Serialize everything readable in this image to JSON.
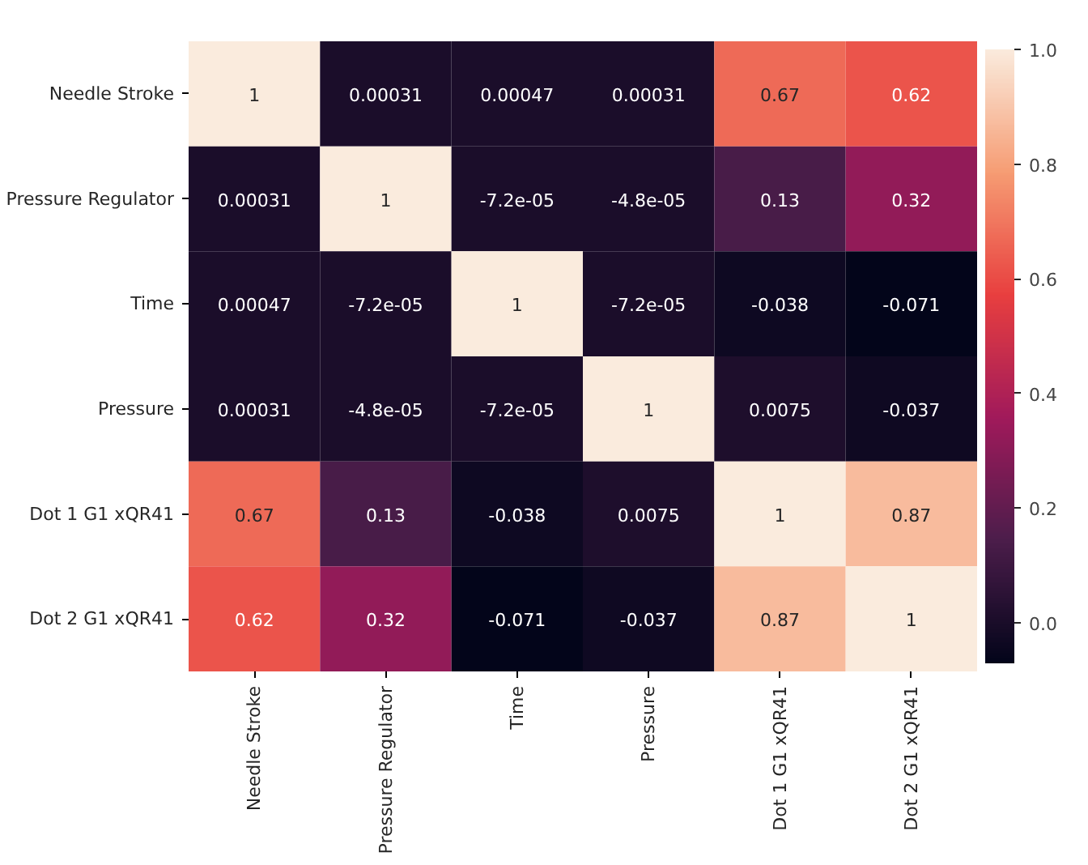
{
  "chart_data": {
    "type": "heatmap",
    "categories": [
      "Needle Stroke",
      "Pressure Regulator",
      "Time",
      "Pressure",
      "Dot 1 G1 xQR41",
      "Dot 2 G1 xQR41"
    ],
    "y_categories": [
      "Needle Stroke",
      "Pressure Regulator",
      "Time",
      "Pressure",
      "Dot 1 G1 xQR41",
      "Dot 2 G1 xQR41"
    ],
    "cells": [
      [
        1,
        0.00031,
        0.00047,
        0.00031,
        0.67,
        0.62
      ],
      [
        0.00031,
        1,
        -7.2e-05,
        -4.8e-05,
        0.13,
        0.32
      ],
      [
        0.00047,
        -7.2e-05,
        1,
        -7.2e-05,
        -0.038,
        -0.071
      ],
      [
        0.00031,
        -4.8e-05,
        -7.2e-05,
        1,
        0.0075,
        -0.037
      ],
      [
        0.67,
        0.13,
        -0.038,
        0.0075,
        1,
        0.87
      ],
      [
        0.62,
        0.32,
        -0.071,
        -0.037,
        0.87,
        1
      ]
    ],
    "cell_labels": [
      [
        "1",
        "0.00031",
        "0.00047",
        "0.00031",
        "0.67",
        "0.62"
      ],
      [
        "0.00031",
        "1",
        "-7.2e-05",
        "-4.8e-05",
        "0.13",
        "0.32"
      ],
      [
        "0.00047",
        "-7.2e-05",
        "1",
        "-7.2e-05",
        "-0.038",
        "-0.071"
      ],
      [
        "0.00031",
        "-4.8e-05",
        "-7.2e-05",
        "1",
        "0.0075",
        "-0.037"
      ],
      [
        "0.67",
        "0.13",
        "-0.038",
        "0.0075",
        "1",
        "0.87"
      ],
      [
        "0.62",
        "0.32",
        "-0.071",
        "-0.037",
        "0.87",
        "1"
      ]
    ],
    "clim": [
      -0.071,
      1
    ],
    "cticks": [
      {
        "value": 0,
        "label": "0.0"
      },
      {
        "value": 0.2,
        "label": "0.2"
      },
      {
        "value": 0.4,
        "label": "0.4"
      },
      {
        "value": 0.6,
        "label": "0.6"
      },
      {
        "value": 0.8,
        "label": "0.8"
      },
      {
        "value": 1,
        "label": "1.0"
      }
    ]
  }
}
